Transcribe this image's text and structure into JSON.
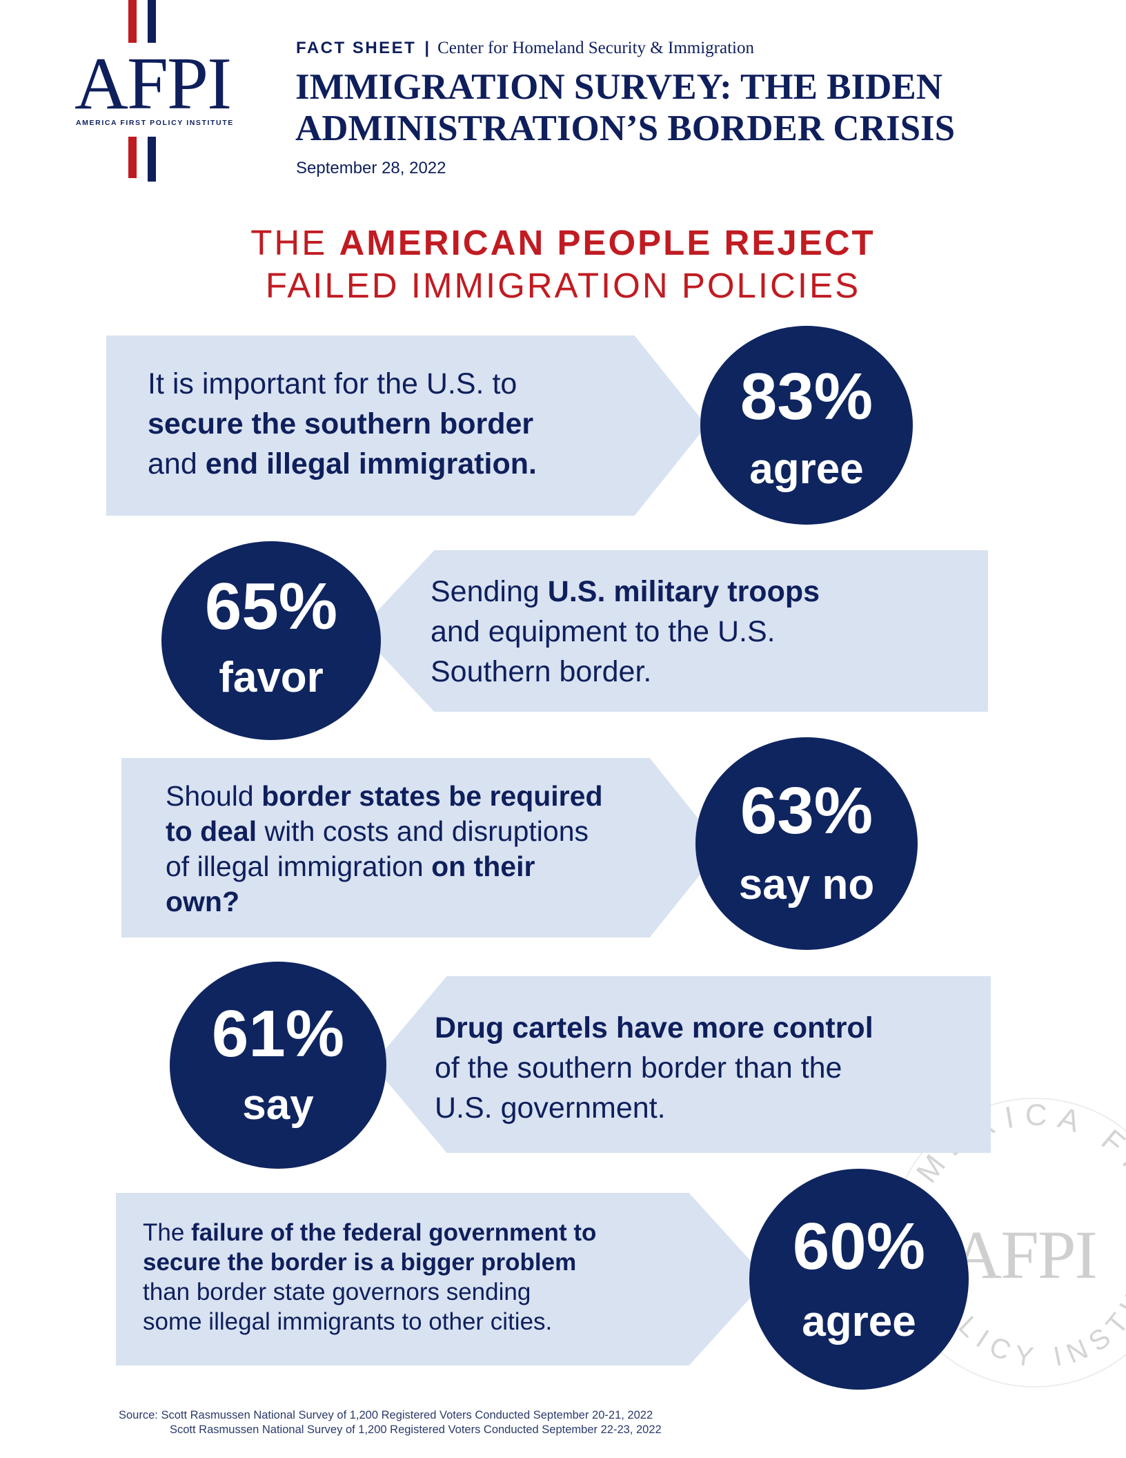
{
  "logo": {
    "name": "AFPI",
    "subtitle": "AMERICA FIRST POLICY INSTITUTE"
  },
  "header": {
    "kicker": "FACT SHEET",
    "separator": "|",
    "center": "Center for Homeland Security & Immigration",
    "title_line1": "IMMIGRATION SURVEY: THE BIDEN",
    "title_line2": "ADMINISTRATION’S BORDER CRISIS",
    "date": "September 28, 2022"
  },
  "headline": {
    "line1_prefix": "THE ",
    "line1_bold": "AMERICAN PEOPLE REJECT",
    "line2": "FAILED IMMIGRATION POLICIES"
  },
  "stats": [
    {
      "text_l1": "It is important for the U.S. to",
      "text_l2_bold": "secure the southern border",
      "text_l3_pre": "and ",
      "text_l3_bold": "end illegal immigration.",
      "percent": "83%",
      "label": "agree"
    },
    {
      "text_l1_pre": "Sending ",
      "text_l1_bold": "U.S. military troops",
      "text_l2": "and equipment to the U.S.",
      "text_l3": "Southern border.",
      "percent": "65%",
      "label": "favor"
    },
    {
      "text_l1_pre": "Should ",
      "text_l1_bold": "border states be required",
      "text_l2_bold": "to deal",
      "text_l2_post": " with costs and disruptions",
      "text_l3_pre": "of illegal immigration ",
      "text_l3_bold": "on their",
      "text_l4_bold": "own?",
      "percent": "63%",
      "label": "say no"
    },
    {
      "text_l1_bold": "Drug cartels have more control",
      "text_l2": "of the southern border than the",
      "text_l3": "U.S. government.",
      "percent": "61%",
      "label": "say"
    },
    {
      "text_l1_pre": "The ",
      "text_l1_bold": "failure of the federal government to",
      "text_l2_bold": "secure the border is a bigger problem",
      "text_l3": "than border state governors sending",
      "text_l4": "some illegal immigrants to other cities.",
      "percent": "60%",
      "label": "agree"
    }
  ],
  "watermark": {
    "name": "AFPI",
    "arc_top": "AMERICA FIRST",
    "arc_bottom": "POLICY INSTITUTE"
  },
  "source": {
    "line1": "Source: Scott Rasmussen National Survey of 1,200 Registered Voters Conducted September 20-21, 2022",
    "line2": "Scott Rasmussen National Survey of 1,200 Registered Voters Conducted September 22-23, 2022"
  },
  "colors": {
    "navy": "#0f2560",
    "red": "#c11b22",
    "panel": "#d8e2f1"
  }
}
